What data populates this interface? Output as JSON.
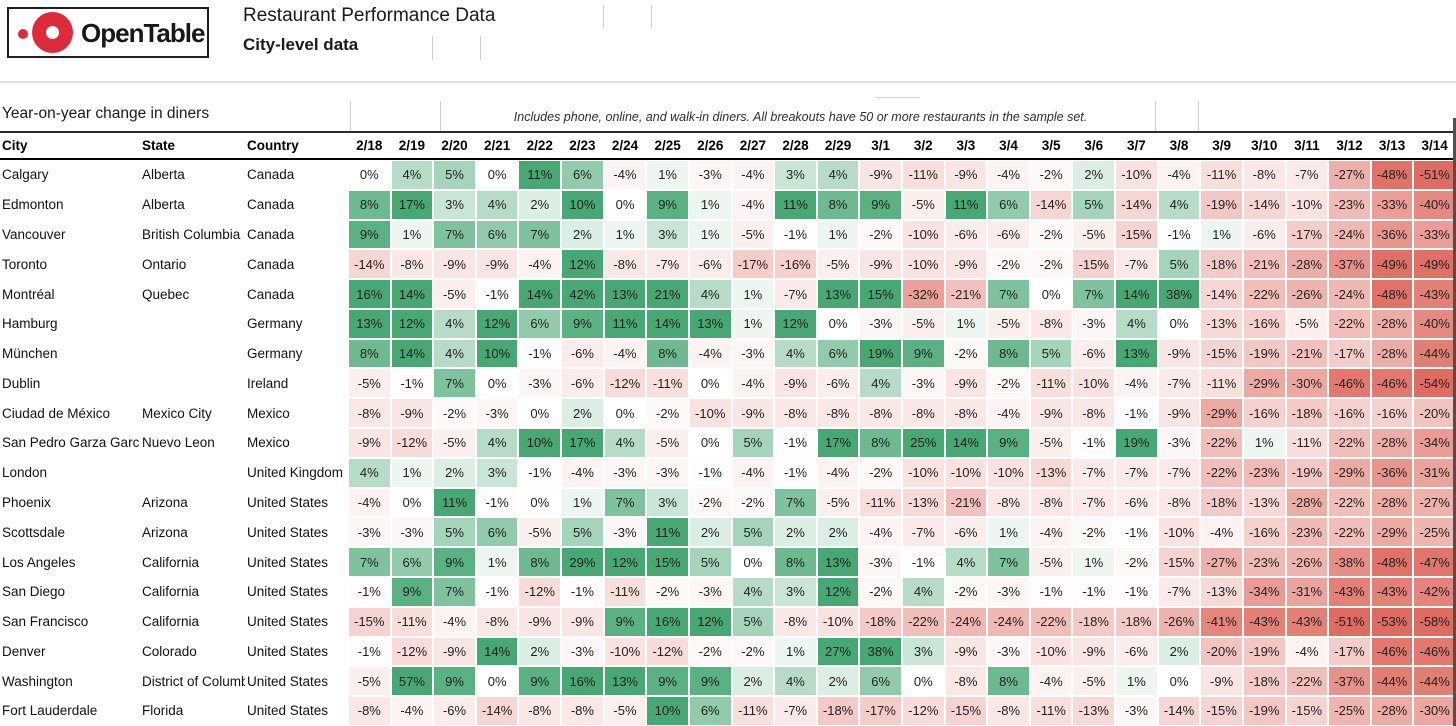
{
  "header": {
    "logo_text": "OpenTable",
    "title": "Restaurant Performance Data",
    "subtitle": "City-level data"
  },
  "table": {
    "section_label": "Year-on-year change in diners",
    "note": "Includes phone, online, and walk-in diners. All breakouts have 50 or more restaurants in the sample set.",
    "col_headers": {
      "city": "City",
      "state": "State",
      "country": "Country"
    }
  },
  "colors": {
    "brand_red": "#dd2b3c",
    "positive_max": "#48a874",
    "negative_max": "#df6c61",
    "divider": "#dbe0eb",
    "green_cap_pct": 10,
    "red_cap_pct": 50
  },
  "chart_data": {
    "type": "heatmap",
    "title": "Year-on-year change in diners",
    "subtitle": "Includes phone, online, and walk-in diners. All breakouts have 50 or more restaurants in the sample set.",
    "value_format": "percent",
    "x": [
      "2/18",
      "2/19",
      "2/20",
      "2/21",
      "2/22",
      "2/23",
      "2/24",
      "2/25",
      "2/26",
      "2/27",
      "2/28",
      "2/29",
      "3/1",
      "3/2",
      "3/3",
      "3/4",
      "3/5",
      "3/6",
      "3/7",
      "3/8",
      "3/9",
      "3/10",
      "3/11",
      "3/12",
      "3/13",
      "3/14"
    ],
    "color_scale": {
      "zero": "#ffffff",
      "positive_max": "#48a874",
      "negative_max": "#df6c61",
      "green_cap_pct": 10,
      "red_cap_pct": 50
    },
    "rows": [
      {
        "city": "Calgary",
        "state": "Alberta",
        "country": "Canada",
        "values": [
          0,
          4,
          5,
          0,
          11,
          6,
          -4,
          1,
          -3,
          -4,
          3,
          4,
          -9,
          -11,
          -9,
          -4,
          -2,
          2,
          -10,
          -4,
          -11,
          -8,
          -7,
          -27,
          -48,
          -51
        ]
      },
      {
        "city": "Edmonton",
        "state": "Alberta",
        "country": "Canada",
        "values": [
          8,
          17,
          3,
          4,
          2,
          10,
          0,
          9,
          1,
          -4,
          11,
          8,
          9,
          -5,
          11,
          6,
          -14,
          5,
          -14,
          4,
          -19,
          -14,
          -10,
          -23,
          -33,
          -40
        ]
      },
      {
        "city": "Vancouver",
        "state": "British Columbia",
        "country": "Canada",
        "values": [
          9,
          1,
          7,
          6,
          7,
          2,
          1,
          3,
          1,
          -5,
          -1,
          1,
          -2,
          -10,
          -6,
          -6,
          -2,
          -5,
          -15,
          -1,
          1,
          -6,
          -17,
          -24,
          -36,
          -33
        ]
      },
      {
        "city": "Toronto",
        "state": "Ontario",
        "country": "Canada",
        "values": [
          -14,
          -8,
          -9,
          -9,
          -4,
          12,
          -8,
          -7,
          -6,
          -17,
          -16,
          -5,
          -9,
          -10,
          -9,
          -2,
          -2,
          -15,
          -7,
          5,
          -18,
          -21,
          -28,
          -37,
          -49,
          -49
        ]
      },
      {
        "city": "Montréal",
        "state": "Quebec",
        "country": "Canada",
        "values": [
          16,
          14,
          -5,
          -1,
          14,
          42,
          13,
          21,
          4,
          1,
          -7,
          13,
          15,
          -32,
          -21,
          7,
          0,
          7,
          14,
          38,
          -14,
          -22,
          -26,
          -24,
          -48,
          -43
        ]
      },
      {
        "city": "Hamburg",
        "state": "",
        "country": "Germany",
        "values": [
          13,
          12,
          4,
          12,
          6,
          9,
          11,
          14,
          13,
          1,
          12,
          0,
          -3,
          -5,
          1,
          -5,
          -8,
          -3,
          4,
          0,
          -13,
          -16,
          -5,
          -22,
          -28,
          -40
        ]
      },
      {
        "city": "München",
        "state": "",
        "country": "Germany",
        "values": [
          8,
          14,
          4,
          10,
          -1,
          -6,
          -4,
          8,
          -4,
          -3,
          4,
          6,
          19,
          9,
          -2,
          8,
          5,
          -6,
          13,
          -9,
          -15,
          -19,
          -21,
          -17,
          -28,
          -44
        ]
      },
      {
        "city": "Dublin",
        "state": "",
        "country": "Ireland",
        "values": [
          -5,
          -1,
          7,
          0,
          -3,
          -6,
          -12,
          -11,
          0,
          -4,
          -9,
          -6,
          4,
          -3,
          -9,
          -2,
          -11,
          -10,
          -4,
          -7,
          -11,
          -29,
          -30,
          -46,
          -46,
          -54
        ]
      },
      {
        "city": "Ciudad de México",
        "state": "Mexico City",
        "country": "Mexico",
        "values": [
          -8,
          -9,
          -2,
          -3,
          0,
          2,
          0,
          -2,
          -10,
          -9,
          -8,
          -8,
          -8,
          -8,
          -8,
          -4,
          -9,
          -8,
          -1,
          -9,
          -29,
          -16,
          -18,
          -16,
          -16,
          -20
        ]
      },
      {
        "city": "San Pedro Garza García",
        "state": "Nuevo Leon",
        "country": "Mexico",
        "values": [
          -9,
          -12,
          -5,
          4,
          10,
          17,
          4,
          -5,
          0,
          5,
          -1,
          17,
          8,
          25,
          14,
          9,
          -5,
          -1,
          19,
          -3,
          -22,
          1,
          -11,
          -22,
          -28,
          -34
        ]
      },
      {
        "city": "London",
        "state": "",
        "country": "United Kingdom",
        "values": [
          4,
          1,
          2,
          3,
          -1,
          -4,
          -3,
          -3,
          -1,
          -4,
          -1,
          -4,
          -2,
          -10,
          -10,
          -10,
          -13,
          -7,
          -7,
          -7,
          -22,
          -23,
          -19,
          -29,
          -36,
          -31
        ]
      },
      {
        "city": "Phoenix",
        "state": "Arizona",
        "country": "United States",
        "values": [
          -4,
          0,
          11,
          -1,
          0,
          1,
          7,
          3,
          -2,
          -2,
          7,
          -5,
          -11,
          -13,
          -21,
          -8,
          -8,
          -7,
          -6,
          -8,
          -18,
          -13,
          -28,
          -22,
          -28,
          -27
        ]
      },
      {
        "city": "Scottsdale",
        "state": "Arizona",
        "country": "United States",
        "values": [
          -3,
          -3,
          5,
          6,
          -5,
          5,
          -3,
          11,
          2,
          5,
          2,
          2,
          -4,
          -7,
          -6,
          1,
          -4,
          -2,
          -1,
          -10,
          -4,
          -16,
          -23,
          -22,
          -29,
          -25
        ]
      },
      {
        "city": "Los Angeles",
        "state": "California",
        "country": "United States",
        "values": [
          7,
          6,
          9,
          1,
          8,
          29,
          12,
          15,
          5,
          0,
          8,
          13,
          -3,
          -1,
          4,
          7,
          -5,
          1,
          -2,
          -15,
          -27,
          -23,
          -26,
          -38,
          -48,
          -47
        ]
      },
      {
        "city": "San Diego",
        "state": "California",
        "country": "United States",
        "values": [
          -1,
          9,
          7,
          -1,
          -12,
          -1,
          -11,
          -2,
          -3,
          4,
          3,
          12,
          -2,
          4,
          -2,
          -3,
          -1,
          -1,
          -1,
          -7,
          -13,
          -34,
          -31,
          -43,
          -43,
          -42
        ]
      },
      {
        "city": "San Francisco",
        "state": "California",
        "country": "United States",
        "values": [
          -15,
          -11,
          -4,
          -8,
          -9,
          -9,
          9,
          16,
          12,
          5,
          -8,
          -10,
          -18,
          -22,
          -24,
          -24,
          -22,
          -18,
          -18,
          -26,
          -41,
          -43,
          -43,
          -51,
          -53,
          -58
        ]
      },
      {
        "city": "Denver",
        "state": "Colorado",
        "country": "United States",
        "values": [
          -1,
          -12,
          -9,
          14,
          2,
          -3,
          -10,
          -12,
          -2,
          -2,
          1,
          27,
          38,
          3,
          -9,
          -3,
          -10,
          -9,
          -6,
          2,
          -20,
          -19,
          -4,
          -17,
          -46,
          -46
        ]
      },
      {
        "city": "Washington",
        "state": "District of Columbia",
        "country": "United States",
        "values": [
          -5,
          57,
          9,
          0,
          9,
          16,
          13,
          9,
          9,
          2,
          4,
          2,
          6,
          0,
          -8,
          8,
          -4,
          -5,
          1,
          0,
          -9,
          -18,
          -22,
          -37,
          -44,
          -44
        ]
      },
      {
        "city": "Fort Lauderdale",
        "state": "Florida",
        "country": "United States",
        "values": [
          -8,
          -4,
          -6,
          -14,
          -8,
          -8,
          -5,
          10,
          6,
          -11,
          -7,
          -18,
          -17,
          -12,
          -15,
          -8,
          -11,
          -13,
          -3,
          -14,
          -15,
          -19,
          -15,
          -25,
          -28,
          -30
        ]
      }
    ]
  }
}
